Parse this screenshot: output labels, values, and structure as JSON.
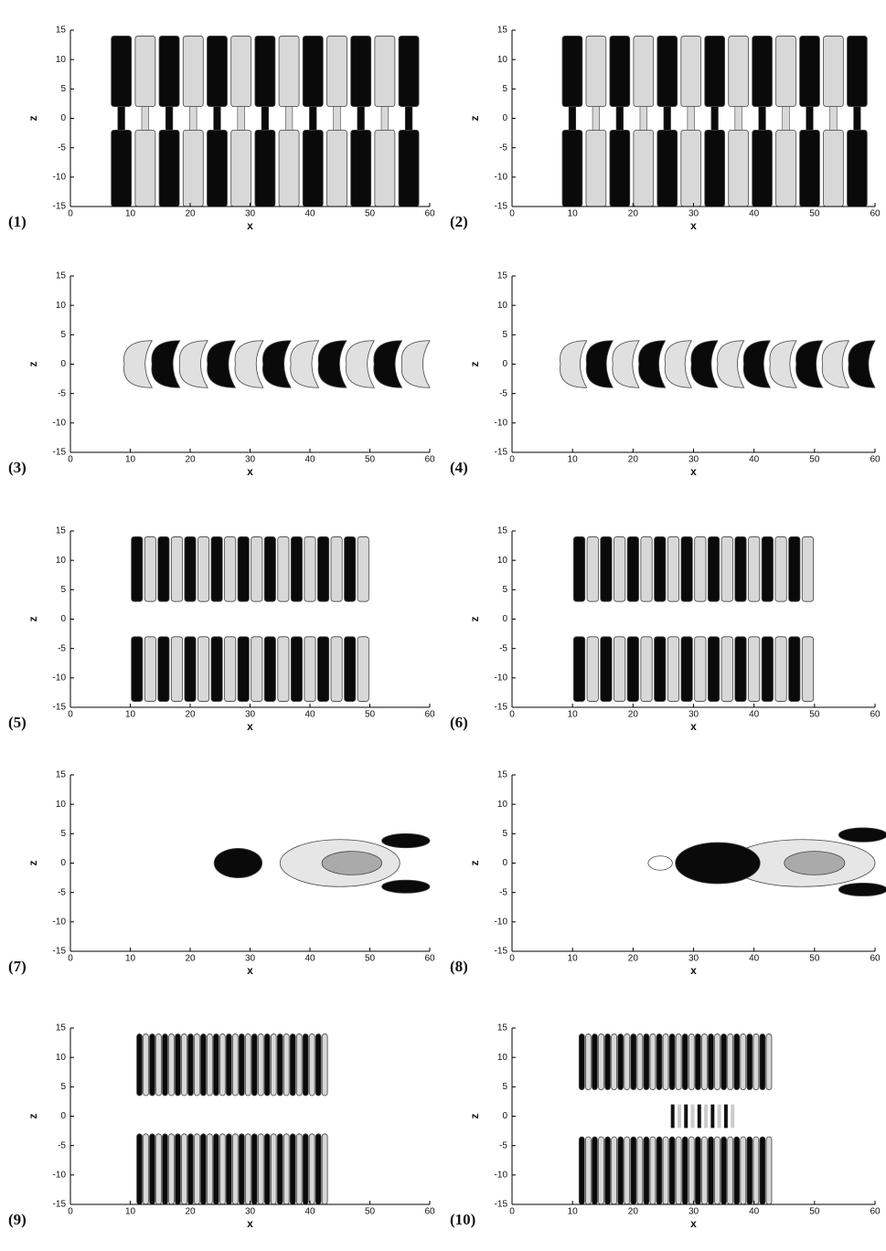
{
  "chart_data": [
    {
      "type": "contour",
      "label": "(1)",
      "xlabel": "x",
      "ylabel": "z",
      "xlim": [
        0,
        60
      ],
      "ylim": [
        -15,
        15
      ],
      "xticks": [
        0,
        10,
        20,
        30,
        40,
        50,
        60
      ],
      "yticks": [
        -15,
        -10,
        -5,
        0,
        5,
        10,
        15
      ]
    },
    {
      "type": "contour",
      "label": "(2)",
      "xlabel": "x",
      "ylabel": "z",
      "xlim": [
        0,
        60
      ],
      "ylim": [
        -15,
        15
      ],
      "xticks": [
        0,
        10,
        20,
        30,
        40,
        50,
        60
      ],
      "yticks": [
        -15,
        -10,
        -5,
        0,
        5,
        10,
        15
      ]
    },
    {
      "type": "contour",
      "label": "(3)",
      "xlabel": "x",
      "ylabel": "z",
      "xlim": [
        0,
        60
      ],
      "ylim": [
        -15,
        15
      ],
      "xticks": [
        0,
        10,
        20,
        30,
        40,
        50,
        60
      ],
      "yticks": [
        -15,
        -10,
        -5,
        0,
        5,
        10,
        15
      ]
    },
    {
      "type": "contour",
      "label": "(4)",
      "xlabel": "x",
      "ylabel": "z",
      "xlim": [
        0,
        60
      ],
      "ylim": [
        -15,
        15
      ],
      "xticks": [
        0,
        10,
        20,
        30,
        40,
        50,
        60
      ],
      "yticks": [
        -15,
        -10,
        -5,
        0,
        5,
        10,
        15
      ]
    },
    {
      "type": "contour",
      "label": "(5)",
      "xlabel": "x",
      "ylabel": "z",
      "xlim": [
        0,
        60
      ],
      "ylim": [
        -15,
        15
      ],
      "xticks": [
        0,
        10,
        20,
        30,
        40,
        50,
        60
      ],
      "yticks": [
        -15,
        -10,
        -5,
        0,
        5,
        10,
        15
      ]
    },
    {
      "type": "contour",
      "label": "(6)",
      "xlabel": "x",
      "ylabel": "z",
      "xlim": [
        0,
        60
      ],
      "ylim": [
        -15,
        15
      ],
      "xticks": [
        0,
        10,
        20,
        30,
        40,
        50,
        60
      ],
      "yticks": [
        -15,
        -10,
        -5,
        0,
        5,
        10,
        15
      ]
    },
    {
      "type": "contour",
      "label": "(7)",
      "xlabel": "x",
      "ylabel": "z",
      "xlim": [
        0,
        60
      ],
      "ylim": [
        -15,
        15
      ],
      "xticks": [
        0,
        10,
        20,
        30,
        40,
        50,
        60
      ],
      "yticks": [
        -15,
        -10,
        -5,
        0,
        5,
        10,
        15
      ]
    },
    {
      "type": "contour",
      "label": "(8)",
      "xlabel": "x",
      "ylabel": "z",
      "xlim": [
        0,
        60
      ],
      "ylim": [
        -15,
        15
      ],
      "xticks": [
        0,
        10,
        20,
        30,
        40,
        50,
        60
      ],
      "yticks": [
        -15,
        -10,
        -5,
        0,
        5,
        10,
        15
      ]
    },
    {
      "type": "contour",
      "label": "(9)",
      "xlabel": "x",
      "ylabel": "z",
      "xlim": [
        0,
        60
      ],
      "ylim": [
        -15,
        15
      ],
      "xticks": [
        0,
        10,
        20,
        30,
        40,
        50,
        60
      ],
      "yticks": [
        -15,
        -10,
        -5,
        0,
        5,
        10,
        15
      ]
    },
    {
      "type": "contour",
      "label": "(10)",
      "xlabel": "x",
      "ylabel": "z",
      "xlim": [
        0,
        60
      ],
      "ylim": [
        -15,
        15
      ],
      "xticks": [
        0,
        10,
        20,
        30,
        40,
        50,
        60
      ],
      "yticks": [
        -15,
        -10,
        -5,
        0,
        5,
        10,
        15
      ]
    }
  ]
}
